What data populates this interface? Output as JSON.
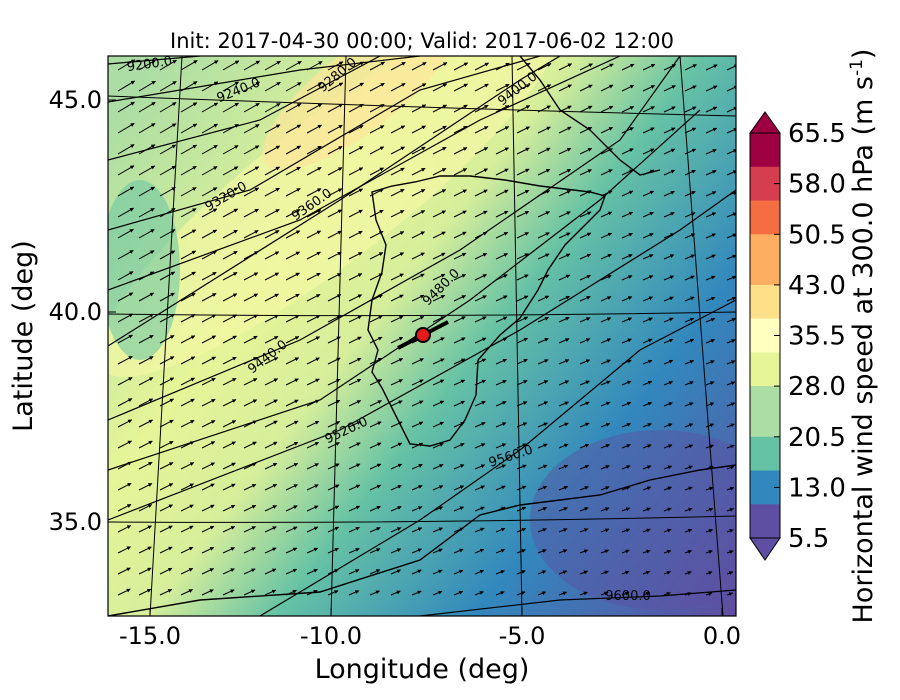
{
  "chart_data": {
    "type": "heatmap",
    "title": "Init: 2017-04-30 00:00; Valid: 2017-06-02 12:00",
    "xlabel": "Longitude (deg)",
    "ylabel": "Latitude (deg)",
    "xlim": [
      -16.0,
      0.3
    ],
    "ylim": [
      32.6,
      46.0
    ],
    "x_ticks": [
      "-15.0",
      "-10.0",
      "-5.0",
      "0.0"
    ],
    "y_ticks": [
      "35.0",
      "40.0",
      "45.0"
    ],
    "grid": true,
    "colorbar": {
      "label": "Horizontal wind speed at 300.0 hPa (m s",
      "label_sup": "-1",
      "label_end": ")",
      "min": 5.5,
      "max": 65.5,
      "ticks": [
        "5.5",
        "13.0",
        "20.5",
        "28.0",
        "35.5",
        "43.0",
        "50.5",
        "58.0",
        "65.5"
      ],
      "colors": [
        "#5e4fa2",
        "#3288bd",
        "#66c2a5",
        "#abdda4",
        "#e6f598",
        "#ffffbf",
        "#fee08b",
        "#fdae61",
        "#f46d43",
        "#d53e4f",
        "#9e0142"
      ]
    },
    "contours": [
      {
        "level": "9200.0"
      },
      {
        "level": "9240.0"
      },
      {
        "level": "9280.0"
      },
      {
        "level": "9320.0"
      },
      {
        "level": "9360.0"
      },
      {
        "level": "9400.0"
      },
      {
        "level": "9440.0"
      },
      {
        "level": "9480.0"
      },
      {
        "level": "9520.0"
      },
      {
        "level": "9560.0"
      },
      {
        "level": "9600.0"
      }
    ],
    "marker": {
      "lon": -7.6,
      "lat": 39.4,
      "color": "#e41a1c"
    },
    "wind_vector_direction": "southwest to northeast"
  }
}
